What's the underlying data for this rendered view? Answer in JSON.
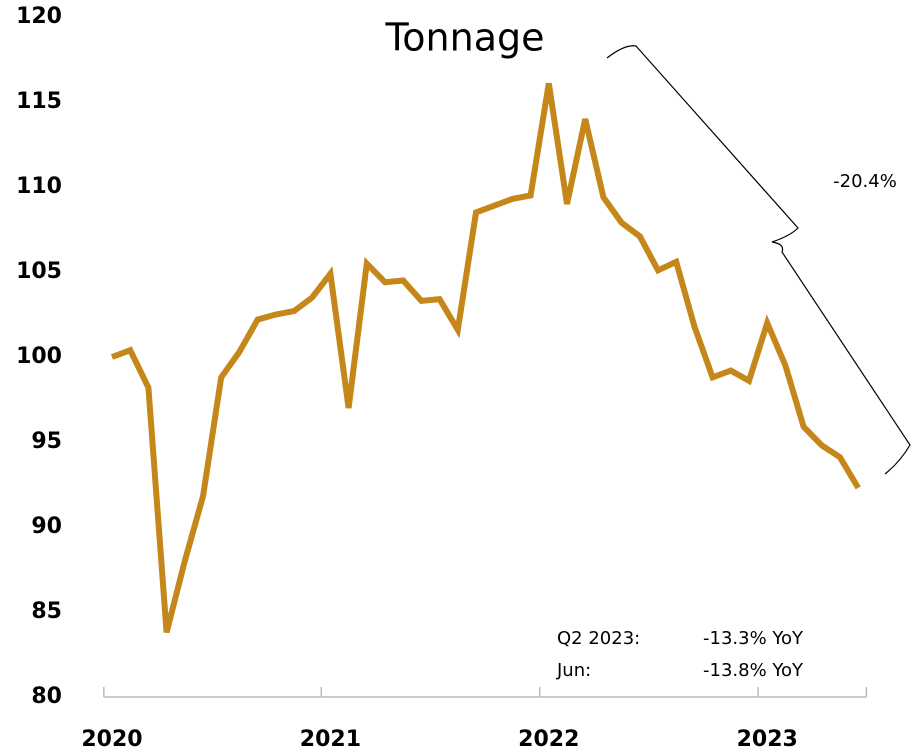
{
  "chart_data": {
    "type": "line",
    "title": "Tonnage",
    "categories": [
      "2020",
      null,
      null,
      null,
      null,
      null,
      null,
      null,
      null,
      null,
      null,
      null,
      "2021",
      null,
      null,
      null,
      null,
      null,
      null,
      null,
      null,
      null,
      null,
      null,
      "2022",
      null,
      null,
      null,
      null,
      null,
      null,
      null,
      null,
      null,
      null,
      null,
      "2023",
      null,
      null,
      null,
      null,
      null
    ],
    "series": [
      {
        "name": "Tonnage",
        "color": "#c5861a",
        "values": [
          100,
          100.4,
          98.2,
          83.8,
          88,
          91.8,
          98.8,
          100.3,
          102.2,
          102.5,
          102.7,
          103.5,
          104.9,
          97,
          105.5,
          104.4,
          104.5,
          103.3,
          103.4,
          101.6,
          108.5,
          108.9,
          109.3,
          109.5,
          116.1,
          109,
          114,
          109.4,
          107.9,
          107.1,
          105.1,
          105.6,
          101.8,
          98.8,
          99.2,
          98.6,
          102,
          99.5,
          95.9,
          94.8,
          94.1,
          92.3
        ]
      }
    ],
    "ylim": [
      80,
      120
    ],
    "yticks": [
      80,
      85,
      90,
      95,
      100,
      105,
      110,
      115,
      120
    ],
    "grid": false,
    "annotations": [
      "-20.4%",
      "Q2 2023:",
      "-13.3% YoY",
      "Jun:",
      "-13.8% YoY"
    ]
  }
}
